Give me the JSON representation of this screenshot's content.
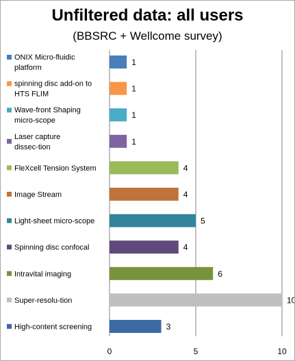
{
  "chart_data": {
    "type": "bar",
    "orientation": "horizontal",
    "title": "Unfiltered data: all users",
    "subtitle": "(BBSRC + Wellcome survey)",
    "xlim": [
      0,
      10
    ],
    "x_ticks": [
      0,
      5,
      10
    ],
    "grid": "vertical major gridlines",
    "legend": "left (one entry per bar)",
    "categories": [
      "ONIX Micro-fluidic platform",
      "spinning disc add-on to HTS FLIM",
      "Wave-front Shaping micro-scope",
      "Laser capture dissec-tion",
      "FleXcell Tension System",
      "Image Stream",
      "Light-sheet micro-scope",
      "Spinning disc confocal",
      "Intravital imaging",
      "Super-resolu-tion",
      "High-content screening"
    ],
    "values": [
      1,
      1,
      1,
      1,
      4,
      4,
      5,
      4,
      6,
      10,
      3
    ],
    "colors": [
      "#4a7ebb",
      "#f79646",
      "#4bacc6",
      "#8064a2",
      "#9bbb59",
      "#c0743c",
      "#31849b",
      "#604a7b",
      "#77933c",
      "#bfbfbf",
      "#3c6aa5"
    ]
  }
}
